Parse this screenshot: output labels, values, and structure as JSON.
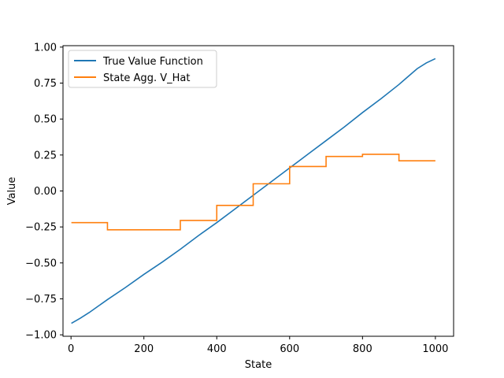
{
  "chart_data": {
    "type": "line",
    "xlabel": "State",
    "ylabel": "Value",
    "xlim": [
      -22,
      1050
    ],
    "ylim": [
      -1.01,
      1.01
    ],
    "xticks": [
      0,
      200,
      400,
      600,
      800,
      1000
    ],
    "yticks": [
      -1.0,
      -0.75,
      -0.5,
      -0.25,
      0.0,
      0.25,
      0.5,
      0.75,
      1.0
    ],
    "xtick_labels": [
      "0",
      "200",
      "400",
      "600",
      "800",
      "1000"
    ],
    "ytick_labels": [
      "−1.00",
      "−0.75",
      "−0.50",
      "−0.25",
      "0.00",
      "0.25",
      "0.50",
      "0.75",
      "1.00"
    ],
    "legend_position": "upper-left",
    "series": [
      {
        "name": "True Value Function",
        "color": "#1f77b4",
        "kind": "line",
        "x": [
          1,
          25,
          50,
          75,
          100,
          150,
          200,
          250,
          300,
          350,
          400,
          450,
          500,
          550,
          600,
          650,
          700,
          750,
          800,
          850,
          900,
          925,
          950,
          975,
          1000
        ],
        "y": [
          -0.92,
          -0.885,
          -0.845,
          -0.8,
          -0.755,
          -0.67,
          -0.58,
          -0.495,
          -0.405,
          -0.31,
          -0.22,
          -0.125,
          -0.03,
          0.065,
          0.16,
          0.255,
          0.35,
          0.445,
          0.545,
          0.64,
          0.74,
          0.795,
          0.85,
          0.89,
          0.92
        ]
      },
      {
        "name": "State Agg. V_Hat",
        "color": "#ff7f0e",
        "kind": "step",
        "x": [
          1,
          100,
          100,
          300,
          300,
          400,
          400,
          500,
          500,
          600,
          600,
          700,
          700,
          800,
          800,
          900,
          900,
          1000
        ],
        "y": [
          -0.22,
          -0.22,
          -0.27,
          -0.27,
          -0.205,
          -0.205,
          -0.1,
          -0.1,
          0.05,
          0.05,
          0.17,
          0.17,
          0.24,
          0.24,
          0.255,
          0.255,
          0.21,
          0.21
        ]
      }
    ]
  }
}
